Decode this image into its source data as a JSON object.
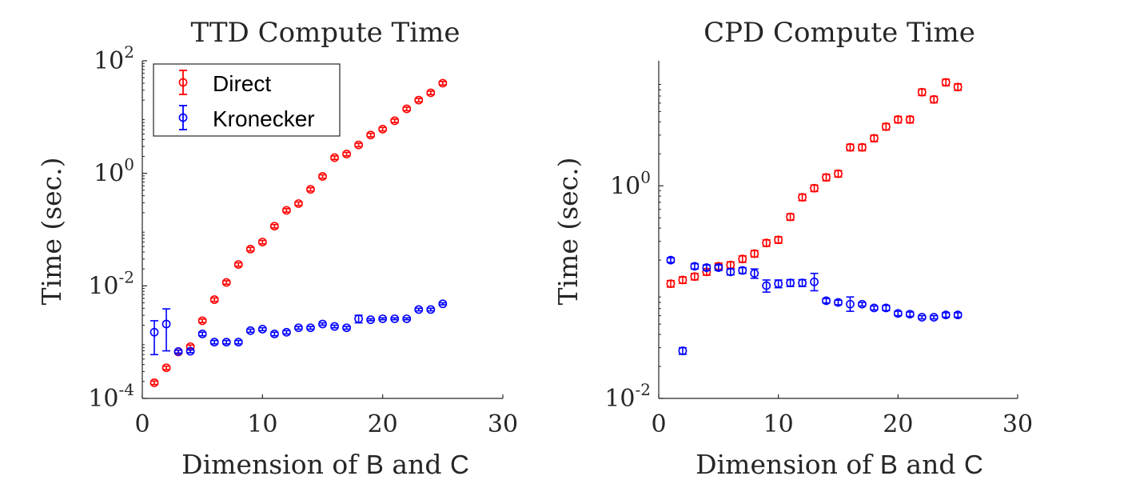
{
  "chart_data": [
    {
      "type": "scatter",
      "title": "TTD Compute Time",
      "xlabel_parts": [
        "Dimension of ",
        "B",
        " and ",
        "C"
      ],
      "ylabel": "Time (sec.)",
      "xlim": [
        0,
        30
      ],
      "ylim": [
        0.0001,
        100
      ],
      "yscale": "log",
      "xticks": [
        0,
        10,
        20,
        30
      ],
      "xtick_labels": [
        "0",
        "10",
        "20",
        "30"
      ],
      "yticks": [
        0.0001,
        0.01,
        1,
        100
      ],
      "ytick_labels": [
        {
          "base": "10",
          "exp": "-4"
        },
        {
          "base": "10",
          "exp": "-2"
        },
        {
          "base": "10",
          "exp": "0"
        },
        {
          "base": "10",
          "exp": "2"
        }
      ],
      "grid": false,
      "legend": {
        "position": "top-left",
        "entries": [
          "Direct",
          "Kronecker"
        ]
      },
      "series": [
        {
          "name": "Direct",
          "color": "#ff0000",
          "x": [
            1,
            2,
            3,
            4,
            5,
            6,
            7,
            8,
            9,
            10,
            11,
            12,
            13,
            14,
            15,
            16,
            17,
            18,
            19,
            20,
            21,
            22,
            23,
            24,
            25
          ],
          "y": [
            0.00019,
            0.00035,
            0.00067,
            0.00083,
            0.0024,
            0.0057,
            0.0115,
            0.024,
            0.045,
            0.06,
            0.115,
            0.22,
            0.29,
            0.52,
            0.88,
            1.9,
            2.2,
            3.2,
            4.8,
            6.1,
            8.6,
            14,
            20,
            27,
            40
          ]
        },
        {
          "name": "Kronecker",
          "color": "#0000ff",
          "x": [
            1,
            2,
            3,
            4,
            5,
            6,
            7,
            8,
            9,
            10,
            11,
            12,
            13,
            14,
            15,
            16,
            17,
            18,
            19,
            20,
            21,
            22,
            23,
            24,
            25
          ],
          "y": [
            0.0015,
            0.0021,
            0.00068,
            0.00069,
            0.0014,
            0.001,
            0.001,
            0.001,
            0.0016,
            0.0017,
            0.0014,
            0.0015,
            0.0018,
            0.0018,
            0.0021,
            0.0019,
            0.0018,
            0.0026,
            0.0025,
            0.0026,
            0.0026,
            0.0026,
            0.0038,
            0.0038,
            0.0048
          ],
          "y_lower": [
            0.0006,
            0.0007,
            0.00064,
            0.00065,
            0.0013,
            0.00093,
            0.00093,
            0.00093,
            0.0015,
            0.0016,
            0.0013,
            0.0014,
            0.0017,
            0.0017,
            0.002,
            0.0018,
            0.0017,
            0.0022,
            0.0024,
            0.0025,
            0.0025,
            0.0025,
            0.0036,
            0.0036,
            0.0046
          ],
          "y_upper": [
            0.0024,
            0.0039,
            0.00072,
            0.00073,
            0.0015,
            0.00107,
            0.00107,
            0.00107,
            0.0017,
            0.0018,
            0.0015,
            0.0016,
            0.0019,
            0.0019,
            0.0022,
            0.002,
            0.0019,
            0.003,
            0.0026,
            0.0027,
            0.0027,
            0.0027,
            0.004,
            0.004,
            0.005
          ]
        }
      ]
    },
    {
      "type": "scatter",
      "title": "CPD Compute Time",
      "xlabel_parts": [
        "Dimension of ",
        "B",
        " and ",
        "C"
      ],
      "ylabel": "Time (sec.)",
      "xlim": [
        0,
        30
      ],
      "ylim": [
        0.01,
        15
      ],
      "yscale": "log",
      "xticks": [
        0,
        10,
        20,
        30
      ],
      "xtick_labels": [
        "0",
        "10",
        "20",
        "30"
      ],
      "yticks": [
        0.01,
        1
      ],
      "ytick_labels": [
        {
          "base": "10",
          "exp": "-2"
        },
        {
          "base": "10",
          "exp": "0"
        }
      ],
      "grid": false,
      "series": [
        {
          "name": "Direct",
          "color": "#ff0000",
          "x": [
            1,
            2,
            3,
            4,
            5,
            6,
            7,
            8,
            9,
            10,
            11,
            12,
            13,
            14,
            15,
            16,
            17,
            18,
            19,
            20,
            21,
            22,
            23,
            24,
            25
          ],
          "y": [
            0.12,
            0.13,
            0.14,
            0.155,
            0.175,
            0.18,
            0.205,
            0.23,
            0.29,
            0.31,
            0.51,
            0.78,
            0.95,
            1.2,
            1.3,
            2.3,
            2.3,
            2.8,
            3.6,
            4.2,
            4.2,
            7.6,
            6.5,
            9.4,
            8.5
          ]
        },
        {
          "name": "Kronecker",
          "color": "#0000ff",
          "x": [
            1,
            2,
            3,
            4,
            5,
            6,
            7,
            8,
            9,
            10,
            11,
            12,
            13,
            14,
            15,
            16,
            17,
            18,
            19,
            20,
            21,
            22,
            23,
            24,
            25
          ],
          "y": [
            0.2,
            0.028,
            0.175,
            0.17,
            0.17,
            0.155,
            0.16,
            0.15,
            0.115,
            0.12,
            0.122,
            0.122,
            0.125,
            0.083,
            0.08,
            0.077,
            0.077,
            0.071,
            0.071,
            0.063,
            0.062,
            0.058,
            0.058,
            0.061,
            0.061
          ],
          "y_lower": [
            0.19,
            0.026,
            0.165,
            0.16,
            0.16,
            0.145,
            0.15,
            0.135,
            0.1,
            0.11,
            0.113,
            0.113,
            0.103,
            0.079,
            0.076,
            0.066,
            0.074,
            0.068,
            0.067,
            0.06,
            0.059,
            0.056,
            0.056,
            0.058,
            0.058
          ],
          "y_upper": [
            0.21,
            0.03,
            0.185,
            0.18,
            0.18,
            0.165,
            0.17,
            0.165,
            0.13,
            0.13,
            0.131,
            0.131,
            0.15,
            0.087,
            0.084,
            0.09,
            0.08,
            0.074,
            0.075,
            0.066,
            0.065,
            0.06,
            0.06,
            0.064,
            0.064
          ]
        }
      ]
    }
  ]
}
